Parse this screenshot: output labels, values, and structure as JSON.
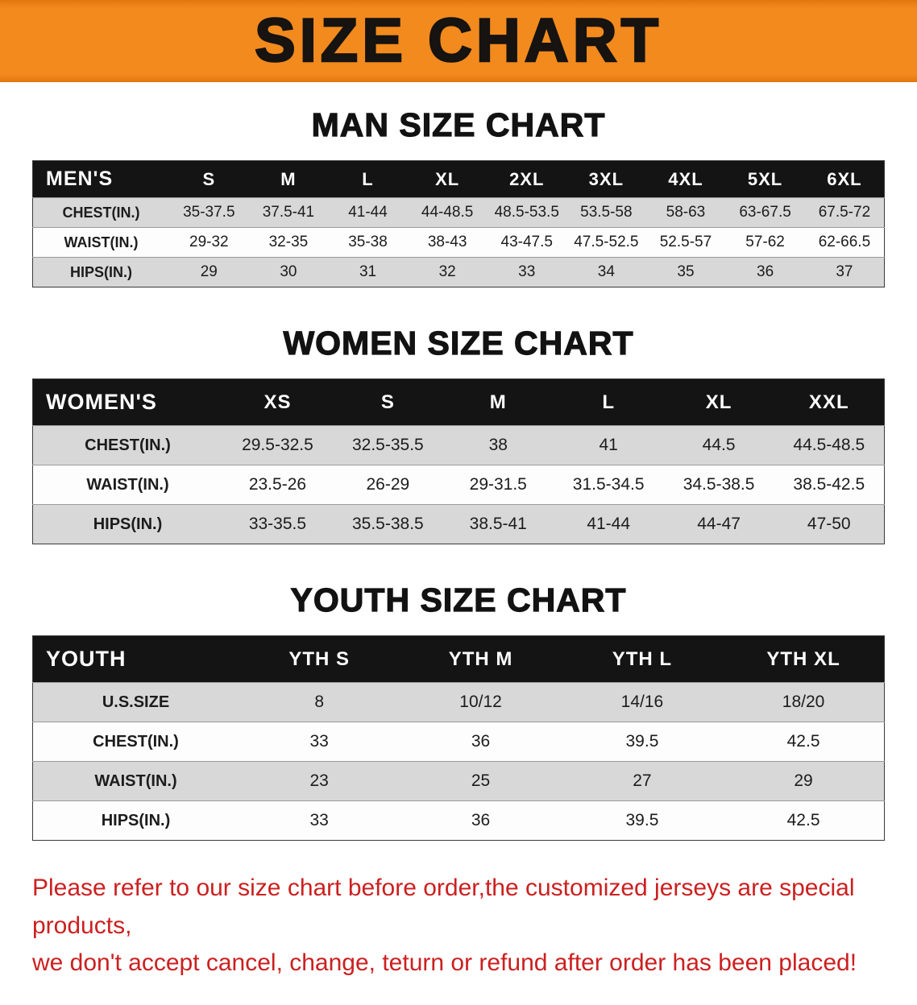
{
  "banner": {
    "title": "SIZE CHART",
    "bg_color": "#f28a1e",
    "text_color": "#161310"
  },
  "sections": [
    {
      "id": "men",
      "heading": "MAN SIZE CHART",
      "table": {
        "header": [
          "MEN'S",
          "S",
          "M",
          "L",
          "XL",
          "2XL",
          "3XL",
          "4XL",
          "5XL",
          "6XL"
        ],
        "rows": [
          [
            "CHEST(IN.)",
            "35-37.5",
            "37.5-41",
            "41-44",
            "44-48.5",
            "48.5-53.5",
            "53.5-58",
            "58-63",
            "63-67.5",
            "67.5-72"
          ],
          [
            "WAIST(IN.)",
            "29-32",
            "32-35",
            "35-38",
            "38-43",
            "43-47.5",
            "47.5-52.5",
            "52.5-57",
            "57-62",
            "62-66.5"
          ],
          [
            "HIPS(IN.)",
            "29",
            "30",
            "31",
            "32",
            "33",
            "34",
            "35",
            "36",
            "37"
          ]
        ]
      }
    },
    {
      "id": "women",
      "heading": "WOMEN SIZE CHART",
      "table": {
        "header": [
          "WOMEN'S",
          "XS",
          "S",
          "M",
          "L",
          "XL",
          "XXL"
        ],
        "rows": [
          [
            "CHEST(IN.)",
            "29.5-32.5",
            "32.5-35.5",
            "38",
            "41",
            "44.5",
            "44.5-48.5"
          ],
          [
            "WAIST(IN.)",
            "23.5-26",
            "26-29",
            "29-31.5",
            "31.5-34.5",
            "34.5-38.5",
            "38.5-42.5"
          ],
          [
            "HIPS(IN.)",
            "33-35.5",
            "35.5-38.5",
            "38.5-41",
            "41-44",
            "44-47",
            "47-50"
          ]
        ]
      }
    },
    {
      "id": "youth",
      "heading": "YOUTH SIZE CHART",
      "table": {
        "header": [
          "YOUTH",
          "YTH S",
          "YTH M",
          "YTH L",
          "YTH XL"
        ],
        "rows": [
          [
            "U.S.SIZE",
            "8",
            "10/12",
            "14/16",
            "18/20"
          ],
          [
            "CHEST(IN.)",
            "33",
            "36",
            "39.5",
            "42.5"
          ],
          [
            "WAIST(IN.)",
            "23",
            "25",
            "27",
            "29"
          ],
          [
            "HIPS(IN.)",
            "33",
            "36",
            "39.5",
            "42.5"
          ]
        ]
      }
    }
  ],
  "disclaimer": {
    "line1": "Please refer to our size chart before order,the customized jerseys are special products,",
    "line2": "we don't accept cancel, change, teturn or refund after order has been placed!",
    "color": "#cc2020"
  }
}
